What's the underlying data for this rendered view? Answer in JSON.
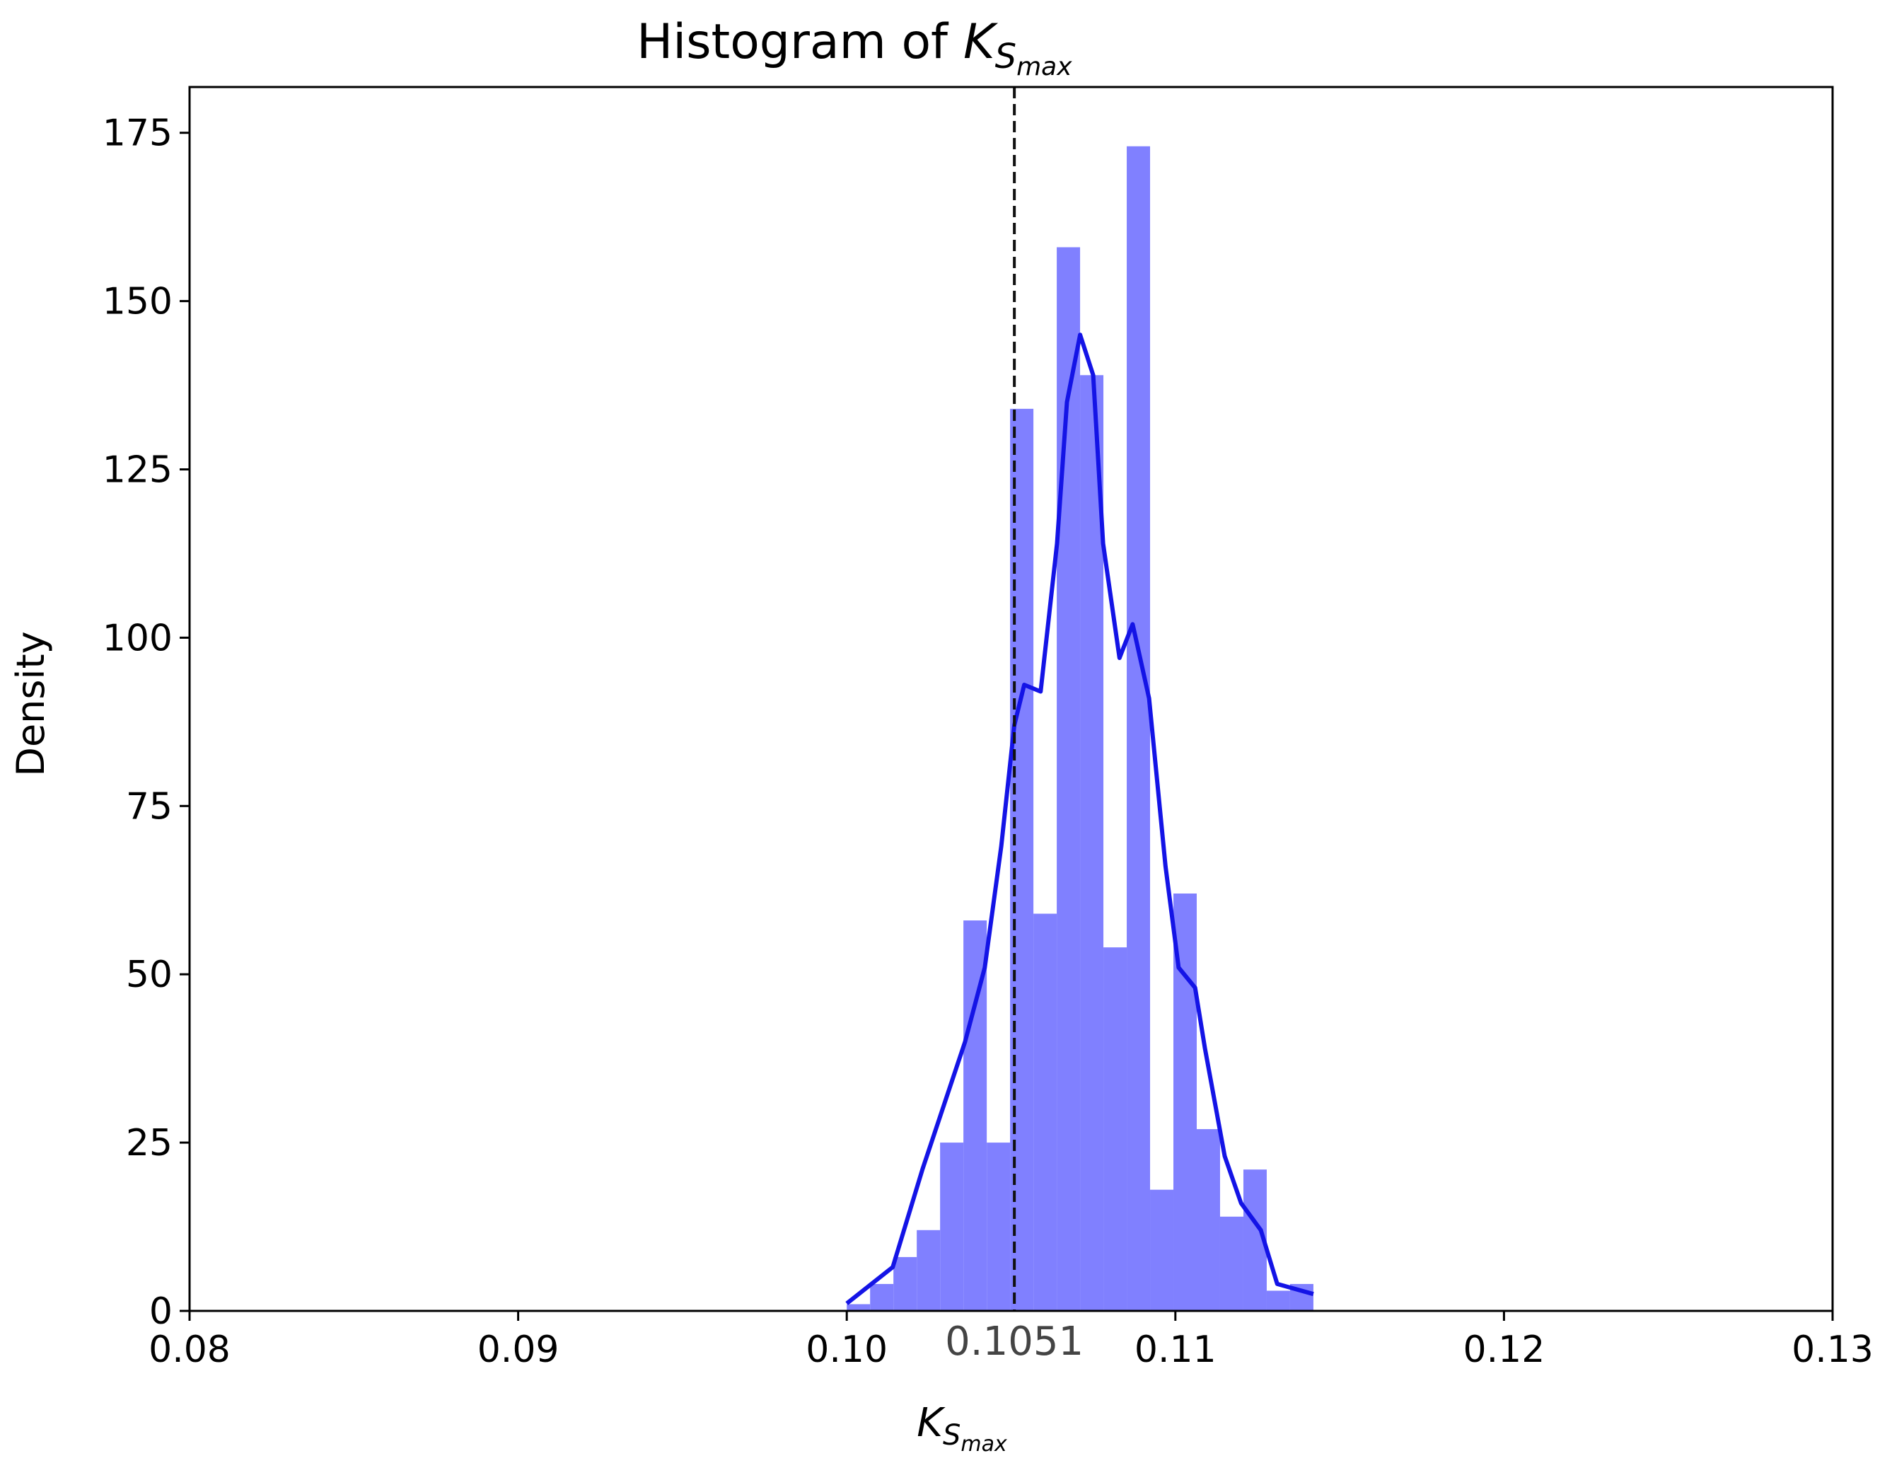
{
  "chart_data": {
    "type": "histogram",
    "title": "Histogram of",
    "title_math": {
      "base": "K",
      "sub": "S",
      "subsub": "max"
    },
    "xlabel_math": {
      "base": "K",
      "sub": "S",
      "subsub": "max"
    },
    "ylabel": "Density",
    "bins": [
      0.1,
      0.10071,
      0.10142,
      0.10213,
      0.10284,
      0.10355,
      0.10426,
      0.10497,
      0.10568,
      0.10639,
      0.1071,
      0.10781,
      0.10852,
      0.10923,
      0.10994,
      0.11065,
      0.11136,
      0.11207,
      0.11278,
      0.11349,
      0.1142
    ],
    "values": [
      1,
      4,
      8,
      12,
      25,
      58,
      25,
      134,
      59,
      158,
      139,
      54,
      173,
      18,
      62,
      27,
      14,
      21,
      3,
      4
    ],
    "color": "#8080ff",
    "kde": {
      "color": "#1414e6",
      "x": [
        0.1,
        0.1014,
        0.1023,
        0.1036,
        0.1042,
        0.1047,
        0.1051,
        0.1054,
        0.1059,
        0.1064,
        0.1067,
        0.1071,
        0.1075,
        0.1078,
        0.1083,
        0.1087,
        0.1092,
        0.1097,
        0.1101,
        0.1106,
        0.1109,
        0.1115,
        0.112,
        0.1126,
        0.1131,
        0.1142
      ],
      "values": [
        1.1,
        6.5,
        21,
        40,
        51,
        69,
        87,
        93,
        92,
        114,
        135,
        145,
        139,
        114,
        97,
        102,
        91,
        66,
        51,
        48,
        39,
        23,
        16,
        12,
        4,
        2.5
      ]
    },
    "vline": 0.1051,
    "xlim": [
      0.08,
      0.13
    ],
    "ylim": [
      0,
      181.8
    ],
    "xticks": [
      0.08,
      0.09,
      {
        "value": 0.1,
        "label": "0.10"
      },
      0.11,
      0.12,
      0.13
    ],
    "yticks": [
      0,
      25,
      50,
      75,
      100,
      125,
      150,
      175
    ]
  }
}
